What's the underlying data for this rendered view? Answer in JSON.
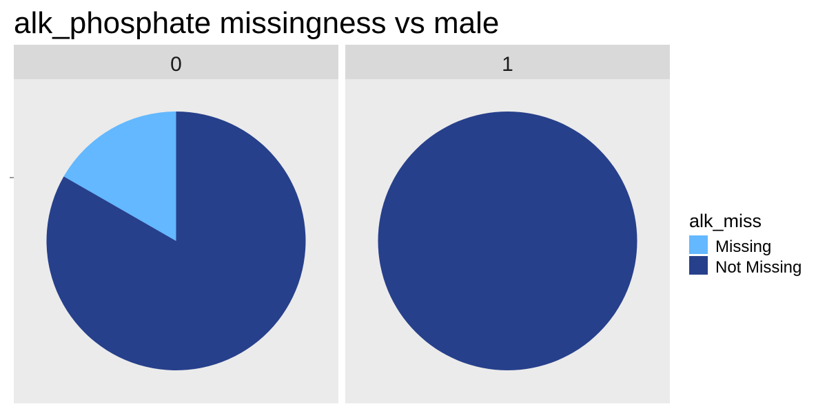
{
  "chart_data": {
    "type": "pie",
    "title": "alk_phosphate missingness vs male",
    "facet_variable": "male",
    "legend": {
      "title": "alk_miss",
      "placement": "right",
      "entries": [
        {
          "label": "Missing",
          "color": "#63b8ff"
        },
        {
          "label": "Not Missing",
          "color": "#27408b"
        }
      ]
    },
    "facets": [
      {
        "label": "0",
        "slices": [
          {
            "category": "Missing",
            "value": 0.167
          },
          {
            "category": "Not Missing",
            "value": 0.833
          }
        ]
      },
      {
        "label": "1",
        "slices": [
          {
            "category": "Missing",
            "value": 0.0
          },
          {
            "category": "Not Missing",
            "value": 1.0
          }
        ]
      }
    ],
    "colors": {
      "panel_background": "#ebebeb",
      "strip_background": "#d9d9d9"
    }
  }
}
